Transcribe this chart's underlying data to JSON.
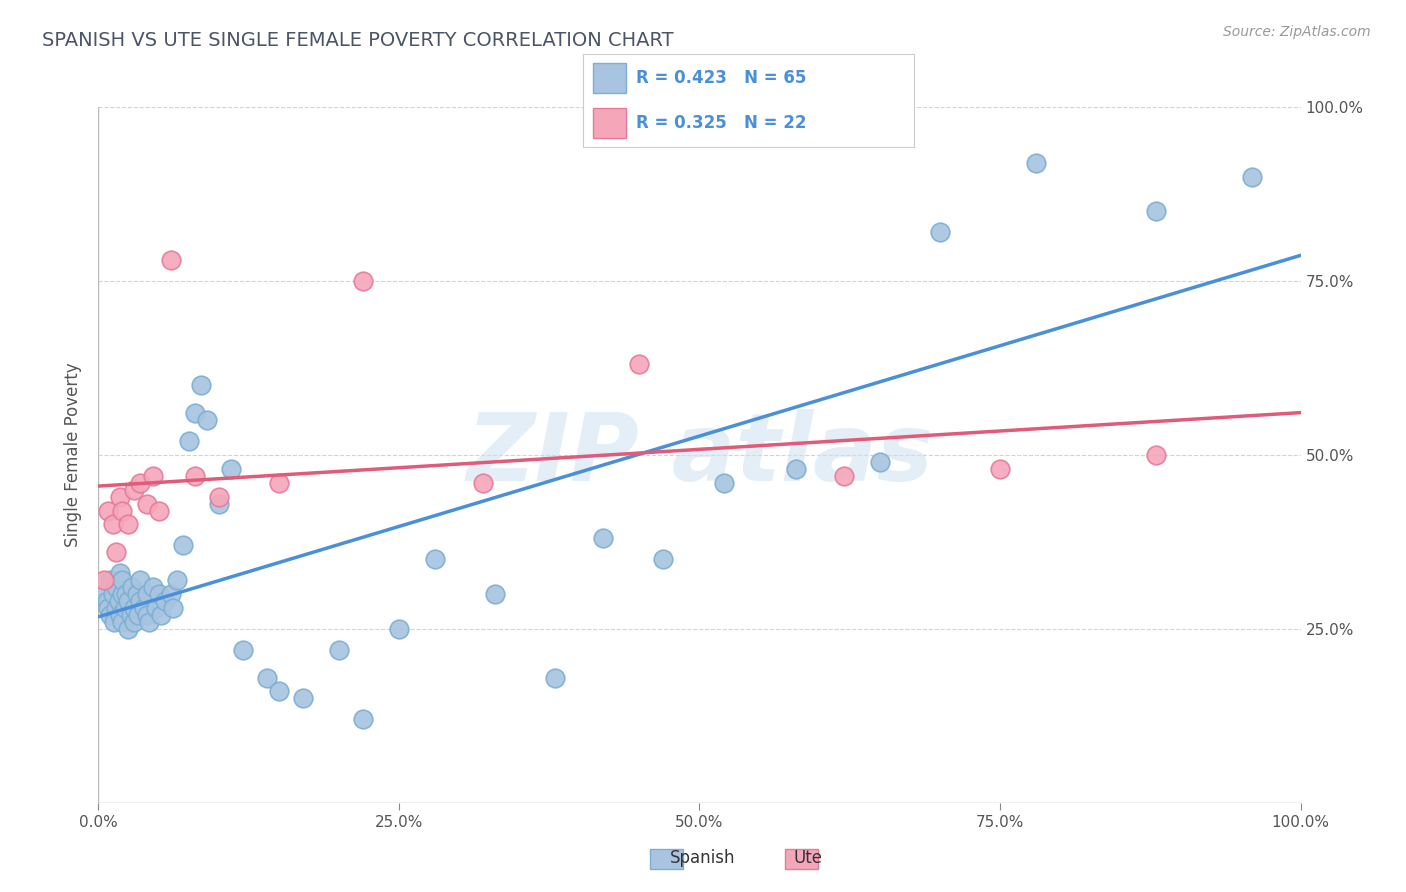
{
  "title": "SPANISH VS UTE SINGLE FEMALE POVERTY CORRELATION CHART",
  "source": "Source: ZipAtlas.com",
  "xlabel": "",
  "ylabel": "Single Female Poverty",
  "xlim": [
    0.0,
    1.0
  ],
  "ylim": [
    0.0,
    1.0
  ],
  "x_ticks": [
    0.0,
    0.25,
    0.5,
    0.75,
    1.0
  ],
  "x_tick_labels": [
    "0.0%",
    "25.0%",
    "50.0%",
    "75.0%",
    "100.0%"
  ],
  "y_ticks": [
    0.25,
    0.5,
    0.75,
    1.0
  ],
  "y_tick_labels_right": [
    "25.0%",
    "50.0%",
    "75.0%",
    "100.0%"
  ],
  "spanish_color": "#a8c4e0",
  "ute_color": "#f4a7b9",
  "spanish_edge_color": "#7bafd4",
  "ute_edge_color": "#e8799a",
  "trend_spanish_color": "#4a90d9",
  "trend_ute_color": "#e05a7a",
  "R_spanish": 0.423,
  "N_spanish": 65,
  "R_ute": 0.325,
  "N_ute": 22,
  "title_color": "#4a5568",
  "axis_color": "#555555",
  "legend_text_color": "#4a90d9",
  "grid_color": "#c8c8c8",
  "background_color": "#ffffff",
  "spanish_x": [
    0.005,
    0.007,
    0.008,
    0.01,
    0.01,
    0.012,
    0.013,
    0.015,
    0.015,
    0.017,
    0.018,
    0.018,
    0.02,
    0.02,
    0.02,
    0.022,
    0.023,
    0.025,
    0.025,
    0.027,
    0.028,
    0.03,
    0.03,
    0.032,
    0.033,
    0.035,
    0.035,
    0.038,
    0.04,
    0.04,
    0.042,
    0.045,
    0.048,
    0.05,
    0.052,
    0.055,
    0.06,
    0.062,
    0.065,
    0.07,
    0.075,
    0.08,
    0.085,
    0.09,
    0.1,
    0.11,
    0.12,
    0.14,
    0.15,
    0.17,
    0.2,
    0.22,
    0.25,
    0.28,
    0.33,
    0.38,
    0.42,
    0.47,
    0.52,
    0.58,
    0.65,
    0.7,
    0.78,
    0.88,
    0.96
  ],
  "spanish_y": [
    0.3,
    0.29,
    0.28,
    0.32,
    0.27,
    0.3,
    0.26,
    0.28,
    0.31,
    0.29,
    0.27,
    0.33,
    0.3,
    0.26,
    0.32,
    0.28,
    0.3,
    0.25,
    0.29,
    0.27,
    0.31,
    0.26,
    0.28,
    0.3,
    0.27,
    0.29,
    0.32,
    0.28,
    0.27,
    0.3,
    0.26,
    0.31,
    0.28,
    0.3,
    0.27,
    0.29,
    0.3,
    0.28,
    0.32,
    0.37,
    0.52,
    0.56,
    0.6,
    0.55,
    0.43,
    0.48,
    0.22,
    0.18,
    0.16,
    0.15,
    0.22,
    0.12,
    0.25,
    0.35,
    0.3,
    0.18,
    0.38,
    0.35,
    0.46,
    0.48,
    0.49,
    0.82,
    0.92,
    0.85,
    0.9
  ],
  "ute_x": [
    0.005,
    0.008,
    0.012,
    0.015,
    0.018,
    0.02,
    0.025,
    0.03,
    0.035,
    0.04,
    0.045,
    0.05,
    0.06,
    0.08,
    0.1,
    0.15,
    0.22,
    0.32,
    0.45,
    0.62,
    0.75,
    0.88
  ],
  "ute_y": [
    0.32,
    0.42,
    0.4,
    0.36,
    0.44,
    0.42,
    0.4,
    0.45,
    0.46,
    0.43,
    0.47,
    0.42,
    0.78,
    0.47,
    0.44,
    0.46,
    0.75,
    0.46,
    0.63,
    0.47,
    0.48,
    0.5
  ]
}
